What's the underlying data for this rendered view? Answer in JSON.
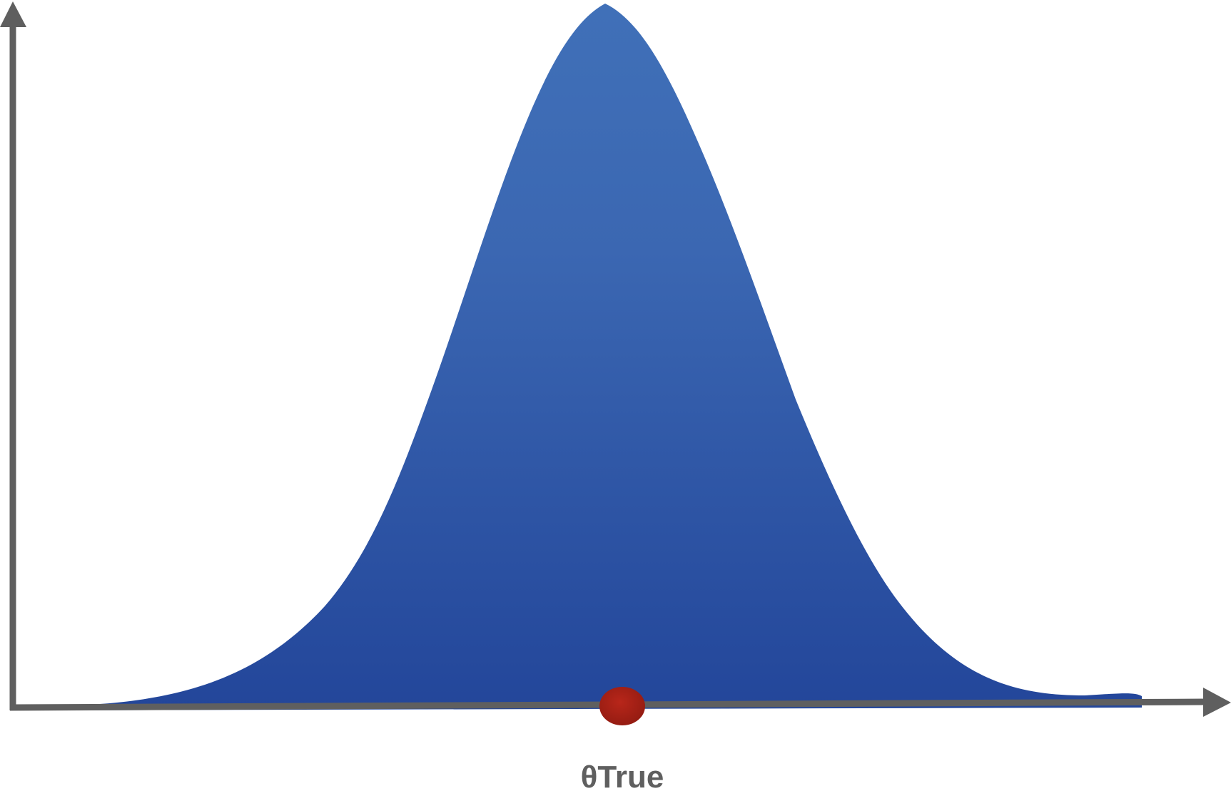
{
  "diagram": {
    "marker_label": "θTrue",
    "colors": {
      "axis": "#5f5f5f",
      "curve_fill_top": "#4070b8",
      "curve_fill_bottom": "#23469a",
      "marker": "#a51f16"
    }
  }
}
